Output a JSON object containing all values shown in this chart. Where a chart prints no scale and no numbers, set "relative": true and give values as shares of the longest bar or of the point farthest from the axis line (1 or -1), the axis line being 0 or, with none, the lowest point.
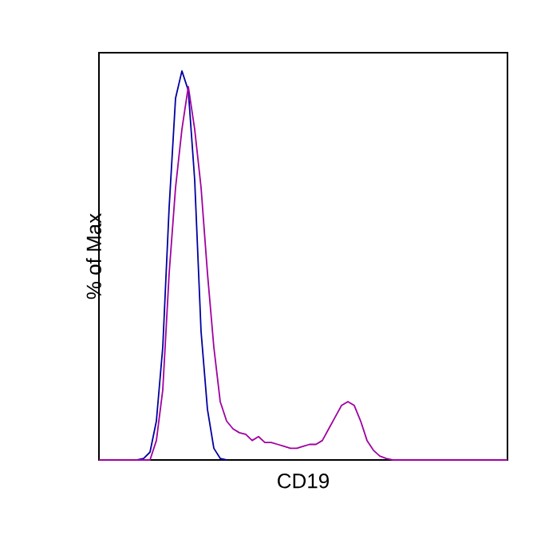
{
  "chart_data": {
    "type": "line",
    "relative": true,
    "xlabel": "CD19",
    "ylabel": "% of Max",
    "categories": [
      null,
      null,
      null,
      null,
      null,
      null,
      null,
      null,
      null,
      null,
      null,
      null,
      null,
      null,
      null,
      null,
      null,
      null,
      null,
      null,
      null,
      null,
      null,
      null,
      null,
      null,
      null,
      null,
      null,
      null,
      null,
      null,
      null,
      null,
      null,
      null,
      null,
      null,
      null,
      null,
      null,
      null,
      null,
      null,
      null,
      null,
      null,
      null,
      null,
      null,
      null,
      null,
      null,
      null,
      null,
      null,
      null,
      null,
      null,
      null,
      null,
      null,
      null,
      null,
      null
    ],
    "series": [
      {
        "color": "#0000a0",
        "values": [
          null,
          null,
          null,
          null,
          null,
          null,
          0,
          0.004,
          0.02,
          0.1,
          0.29,
          0.65,
          0.93,
          1.0,
          0.95,
          0.72,
          0.33,
          0.13,
          0.03,
          0.004,
          0,
          null,
          null,
          null,
          null,
          null,
          null,
          null,
          null,
          null,
          null,
          null,
          null,
          null,
          null,
          null,
          null,
          null,
          null,
          null,
          null,
          null,
          null,
          null,
          null,
          null,
          null,
          null,
          null,
          null,
          null,
          null,
          null,
          null,
          null,
          null,
          null,
          null,
          null,
          null,
          null,
          null,
          null,
          null,
          null
        ]
      },
      {
        "color": "#a000a0",
        "values": [
          0,
          0,
          0,
          0,
          0,
          0,
          0,
          0,
          0,
          0.05,
          0.18,
          0.48,
          0.7,
          0.85,
          0.96,
          0.85,
          0.7,
          0.48,
          0.29,
          0.15,
          0.1,
          0.08,
          0.07,
          0.066,
          0.05,
          0.06,
          0.045,
          0.045,
          0.04,
          0.035,
          0.03,
          0.03,
          0.035,
          0.04,
          0.04,
          0.05,
          0.08,
          0.11,
          0.14,
          0.15,
          0.14,
          0.1,
          0.05,
          0.025,
          0.01,
          0.004,
          0,
          0,
          0,
          0,
          0,
          0,
          0,
          0,
          0,
          0,
          0,
          0,
          0,
          0,
          0,
          0,
          0,
          0,
          0
        ]
      }
    ],
    "marker": "none",
    "line_style": "solid"
  }
}
